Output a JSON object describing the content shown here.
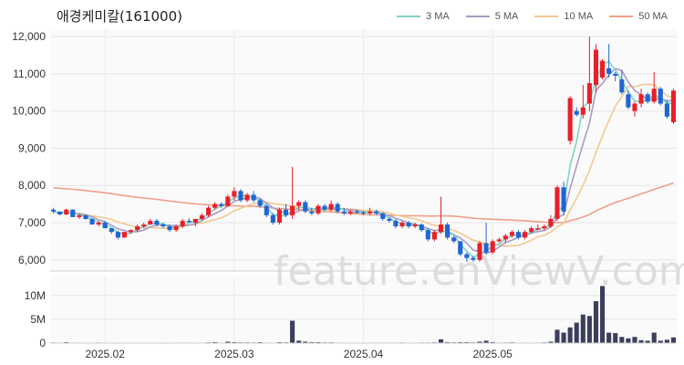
{
  "title": "애경케미칼(161000)",
  "watermark": "feature.enViewV.com",
  "legend": [
    {
      "name": "3 MA",
      "color": "#7fd3c3"
    },
    {
      "name": "5 MA",
      "color": "#a99cc6"
    },
    {
      "name": "10 MA",
      "color": "#f2c98e"
    },
    {
      "name": "50 MA",
      "color": "#f0a08a"
    }
  ],
  "colors": {
    "up": "#e8202a",
    "down": "#1f66d1",
    "volume": "#3b3f5c"
  },
  "chart_data": [
    {
      "type": "candlestick",
      "ylim": [
        5700,
        12200
      ],
      "yticks": [
        "6,000",
        "7,000",
        "8,000",
        "9,000",
        "10,000",
        "11,000",
        "12,000"
      ],
      "xticks": [
        "2025.02",
        "2025.03",
        "2025.04",
        "2025.05"
      ],
      "grid": true,
      "candles": [
        [
          7350,
          7400,
          7250,
          7300
        ],
        [
          7300,
          7300,
          7200,
          7220
        ],
        [
          7220,
          7380,
          7200,
          7350
        ],
        [
          7350,
          7360,
          7150,
          7150
        ],
        [
          7150,
          7250,
          7100,
          7200
        ],
        [
          7200,
          7210,
          7080,
          7100
        ],
        [
          7100,
          7120,
          6950,
          6950
        ],
        [
          6950,
          7050,
          6900,
          7000
        ],
        [
          7000,
          7050,
          6850,
          6850
        ],
        [
          6850,
          6850,
          6700,
          6750
        ],
        [
          6750,
          6780,
          6550,
          6600
        ],
        [
          6600,
          6750,
          6600,
          6750
        ],
        [
          6750,
          6820,
          6700,
          6800
        ],
        [
          6800,
          6950,
          6750,
          6900
        ],
        [
          6900,
          7000,
          6850,
          6950
        ],
        [
          6950,
          7100,
          6950,
          7050
        ],
        [
          7050,
          7100,
          6900,
          6950
        ],
        [
          6950,
          7000,
          6850,
          6900
        ],
        [
          6900,
          6950,
          6750,
          6800
        ],
        [
          6800,
          6950,
          6750,
          6900
        ],
        [
          6900,
          7100,
          6850,
          7050
        ],
        [
          7050,
          7120,
          7000,
          7020
        ],
        [
          7000,
          7100,
          6900,
          7100
        ],
        [
          7100,
          7250,
          7050,
          7200
        ],
        [
          7200,
          7450,
          7150,
          7400
        ],
        [
          7400,
          7550,
          7350,
          7500
        ],
        [
          7500,
          7550,
          7400,
          7450
        ],
        [
          7450,
          7750,
          7420,
          7700
        ],
        [
          7700,
          7950,
          7600,
          7850
        ],
        [
          7850,
          7900,
          7550,
          7600
        ],
        [
          7600,
          7800,
          7550,
          7750
        ],
        [
          7750,
          7850,
          7550,
          7600
        ],
        [
          7600,
          7650,
          7400,
          7450
        ],
        [
          7450,
          7500,
          7150,
          7200
        ],
        [
          7200,
          7250,
          6950,
          7000
        ],
        [
          7000,
          7400,
          6950,
          7350
        ],
        [
          7350,
          7500,
          7150,
          7200
        ],
        [
          7200,
          8500,
          7100,
          7450
        ],
        [
          7450,
          7600,
          7350,
          7550
        ],
        [
          7550,
          7600,
          7250,
          7300
        ],
        [
          7300,
          7400,
          7200,
          7250
        ],
        [
          7250,
          7500,
          7200,
          7450
        ],
        [
          7450,
          7500,
          7300,
          7350
        ],
        [
          7350,
          7600,
          7300,
          7500
        ],
        [
          7500,
          7550,
          7250,
          7300
        ],
        [
          7300,
          7400,
          7200,
          7250
        ],
        [
          7250,
          7350,
          7200,
          7300
        ],
        [
          7300,
          7350,
          7250,
          7280
        ],
        [
          7280,
          7320,
          7200,
          7250
        ],
        [
          7250,
          7400,
          7200,
          7300
        ],
        [
          7300,
          7350,
          7200,
          7250
        ],
        [
          7250,
          7280,
          7050,
          7100
        ],
        [
          7100,
          7150,
          7000,
          7050
        ],
        [
          7050,
          7100,
          6850,
          6900
        ],
        [
          6900,
          7050,
          6850,
          7000
        ],
        [
          7000,
          7050,
          6850,
          6900
        ],
        [
          6900,
          7000,
          6850,
          6950
        ],
        [
          6950,
          6980,
          6750,
          6800
        ],
        [
          6800,
          6850,
          6500,
          6550
        ],
        [
          6550,
          6800,
          6500,
          6750
        ],
        [
          6750,
          7700,
          6700,
          6950
        ],
        [
          6950,
          7000,
          6550,
          6600
        ],
        [
          6600,
          6650,
          6450,
          6500
        ],
        [
          6500,
          6500,
          6100,
          6150
        ],
        [
          6150,
          6200,
          5950,
          6050
        ],
        [
          6050,
          6100,
          5950,
          6000
        ],
        [
          6000,
          6500,
          5950,
          6450
        ],
        [
          6450,
          7000,
          6150,
          6200
        ],
        [
          6200,
          6550,
          6150,
          6500
        ],
        [
          6500,
          6600,
          6450,
          6550
        ],
        [
          6550,
          6700,
          6450,
          6650
        ],
        [
          6650,
          6800,
          6600,
          6750
        ],
        [
          6750,
          6800,
          6550,
          6600
        ],
        [
          6600,
          6800,
          6550,
          6750
        ],
        [
          6750,
          6900,
          6700,
          6850
        ],
        [
          6850,
          6950,
          6800,
          6850
        ],
        [
          6850,
          6950,
          6800,
          6900
        ],
        [
          6900,
          7200,
          6850,
          7100
        ],
        [
          7100,
          8000,
          7050,
          7950
        ],
        [
          7950,
          8100,
          7200,
          7300
        ],
        [
          9200,
          10400,
          9100,
          10350
        ],
        [
          10000,
          10100,
          9850,
          9900
        ],
        [
          9900,
          10700,
          9800,
          10100
        ],
        [
          10200,
          12000,
          10000,
          10750
        ],
        [
          10700,
          11800,
          10500,
          11650
        ],
        [
          10900,
          11400,
          10850,
          11350
        ],
        [
          11150,
          11800,
          10900,
          11000
        ],
        [
          11000,
          11050,
          10800,
          10950
        ],
        [
          10850,
          11100,
          10450,
          10500
        ],
        [
          10450,
          10550,
          10050,
          10100
        ],
        [
          10000,
          10250,
          9850,
          10200
        ],
        [
          10200,
          10600,
          10100,
          10450
        ],
        [
          10450,
          10500,
          10200,
          10250
        ],
        [
          10250,
          11050,
          10200,
          10600
        ],
        [
          10600,
          10650,
          10150,
          10200
        ],
        [
          10200,
          10300,
          9800,
          9850
        ],
        [
          9700,
          10600,
          9650,
          10550
        ]
      ],
      "ma_labels": [
        "3 MA",
        "5 MA",
        "10 MA",
        "50 MA"
      ],
      "volume_ylim": [
        0,
        14000000
      ],
      "volume_yticks": [
        "0",
        "5M",
        "10M"
      ],
      "volume": [
        120000,
        60000,
        180000,
        100000,
        80000,
        60000,
        90000,
        120000,
        70000,
        60000,
        50000,
        80000,
        60000,
        90000,
        70000,
        60000,
        70000,
        50000,
        60000,
        80000,
        100000,
        60000,
        90000,
        80000,
        150000,
        200000,
        100000,
        300000,
        200000,
        150000,
        150000,
        120000,
        200000,
        100000,
        90000,
        200000,
        150000,
        4700000,
        500000,
        300000,
        200000,
        200000,
        150000,
        150000,
        100000,
        80000,
        60000,
        60000,
        50000,
        80000,
        100000,
        60000,
        100000,
        80000,
        120000,
        60000,
        60000,
        120000,
        120000,
        150000,
        800000,
        200000,
        150000,
        200000,
        200000,
        150000,
        300000,
        500000,
        200000,
        100000,
        120000,
        150000,
        100000,
        80000,
        80000,
        100000,
        150000,
        300000,
        2800000,
        2200000,
        3300000,
        4300000,
        6000000,
        5700000,
        8800000,
        12000000,
        2200000,
        2100000,
        1300000,
        1000000,
        1300000,
        600000,
        500000,
        2200000,
        500000,
        700000,
        1200000
      ]
    }
  ]
}
